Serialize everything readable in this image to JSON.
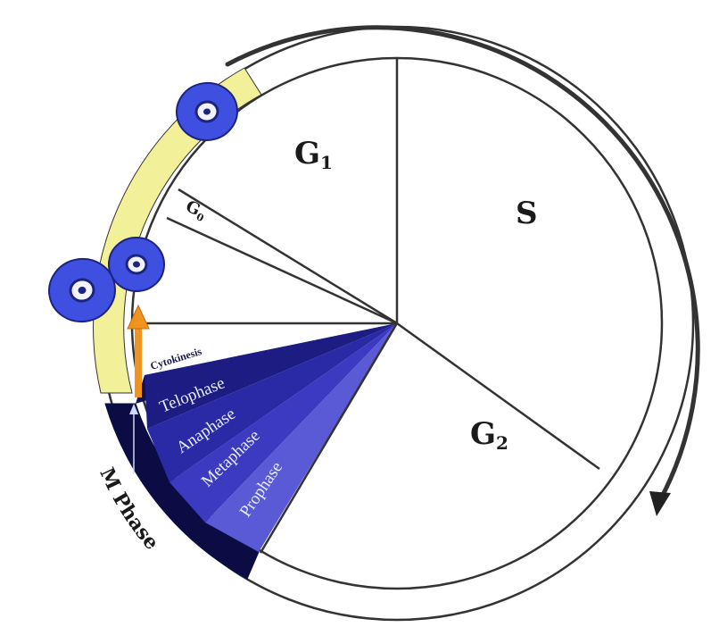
{
  "phases": {
    "g1": {
      "main": "G",
      "sub": "1"
    },
    "s": "S",
    "g2": {
      "main": "G",
      "sub": "2"
    },
    "g0": {
      "main": "G",
      "sub": "0"
    }
  },
  "mitosis": {
    "cytokinesis": "Cytokinesis",
    "telophase": "Telophase",
    "anaphase": "Anaphase",
    "metaphase": "Metaphase",
    "prophase": "Prophase"
  },
  "m_phase_label": "M Phase",
  "colors": {
    "outline": "#333333",
    "band_yellow": "#f3f09a",
    "m_band": "#0b0c44",
    "cell_fill": "#3f4fe0",
    "cell_nucleus": "#f2f2ff",
    "cytokinesis_arrow": "#f0931f",
    "prophase": "#5a5ad6",
    "metaphase": "#3b3ac0",
    "anaphase": "#2a29a6",
    "telophase": "#1d1c82",
    "cytokinesis_wedge": "#101058"
  },
  "icons": [
    "cell-icon",
    "cycle-direction-arrow",
    "cytokinesis-arrow",
    "m-phase-arrow"
  ]
}
